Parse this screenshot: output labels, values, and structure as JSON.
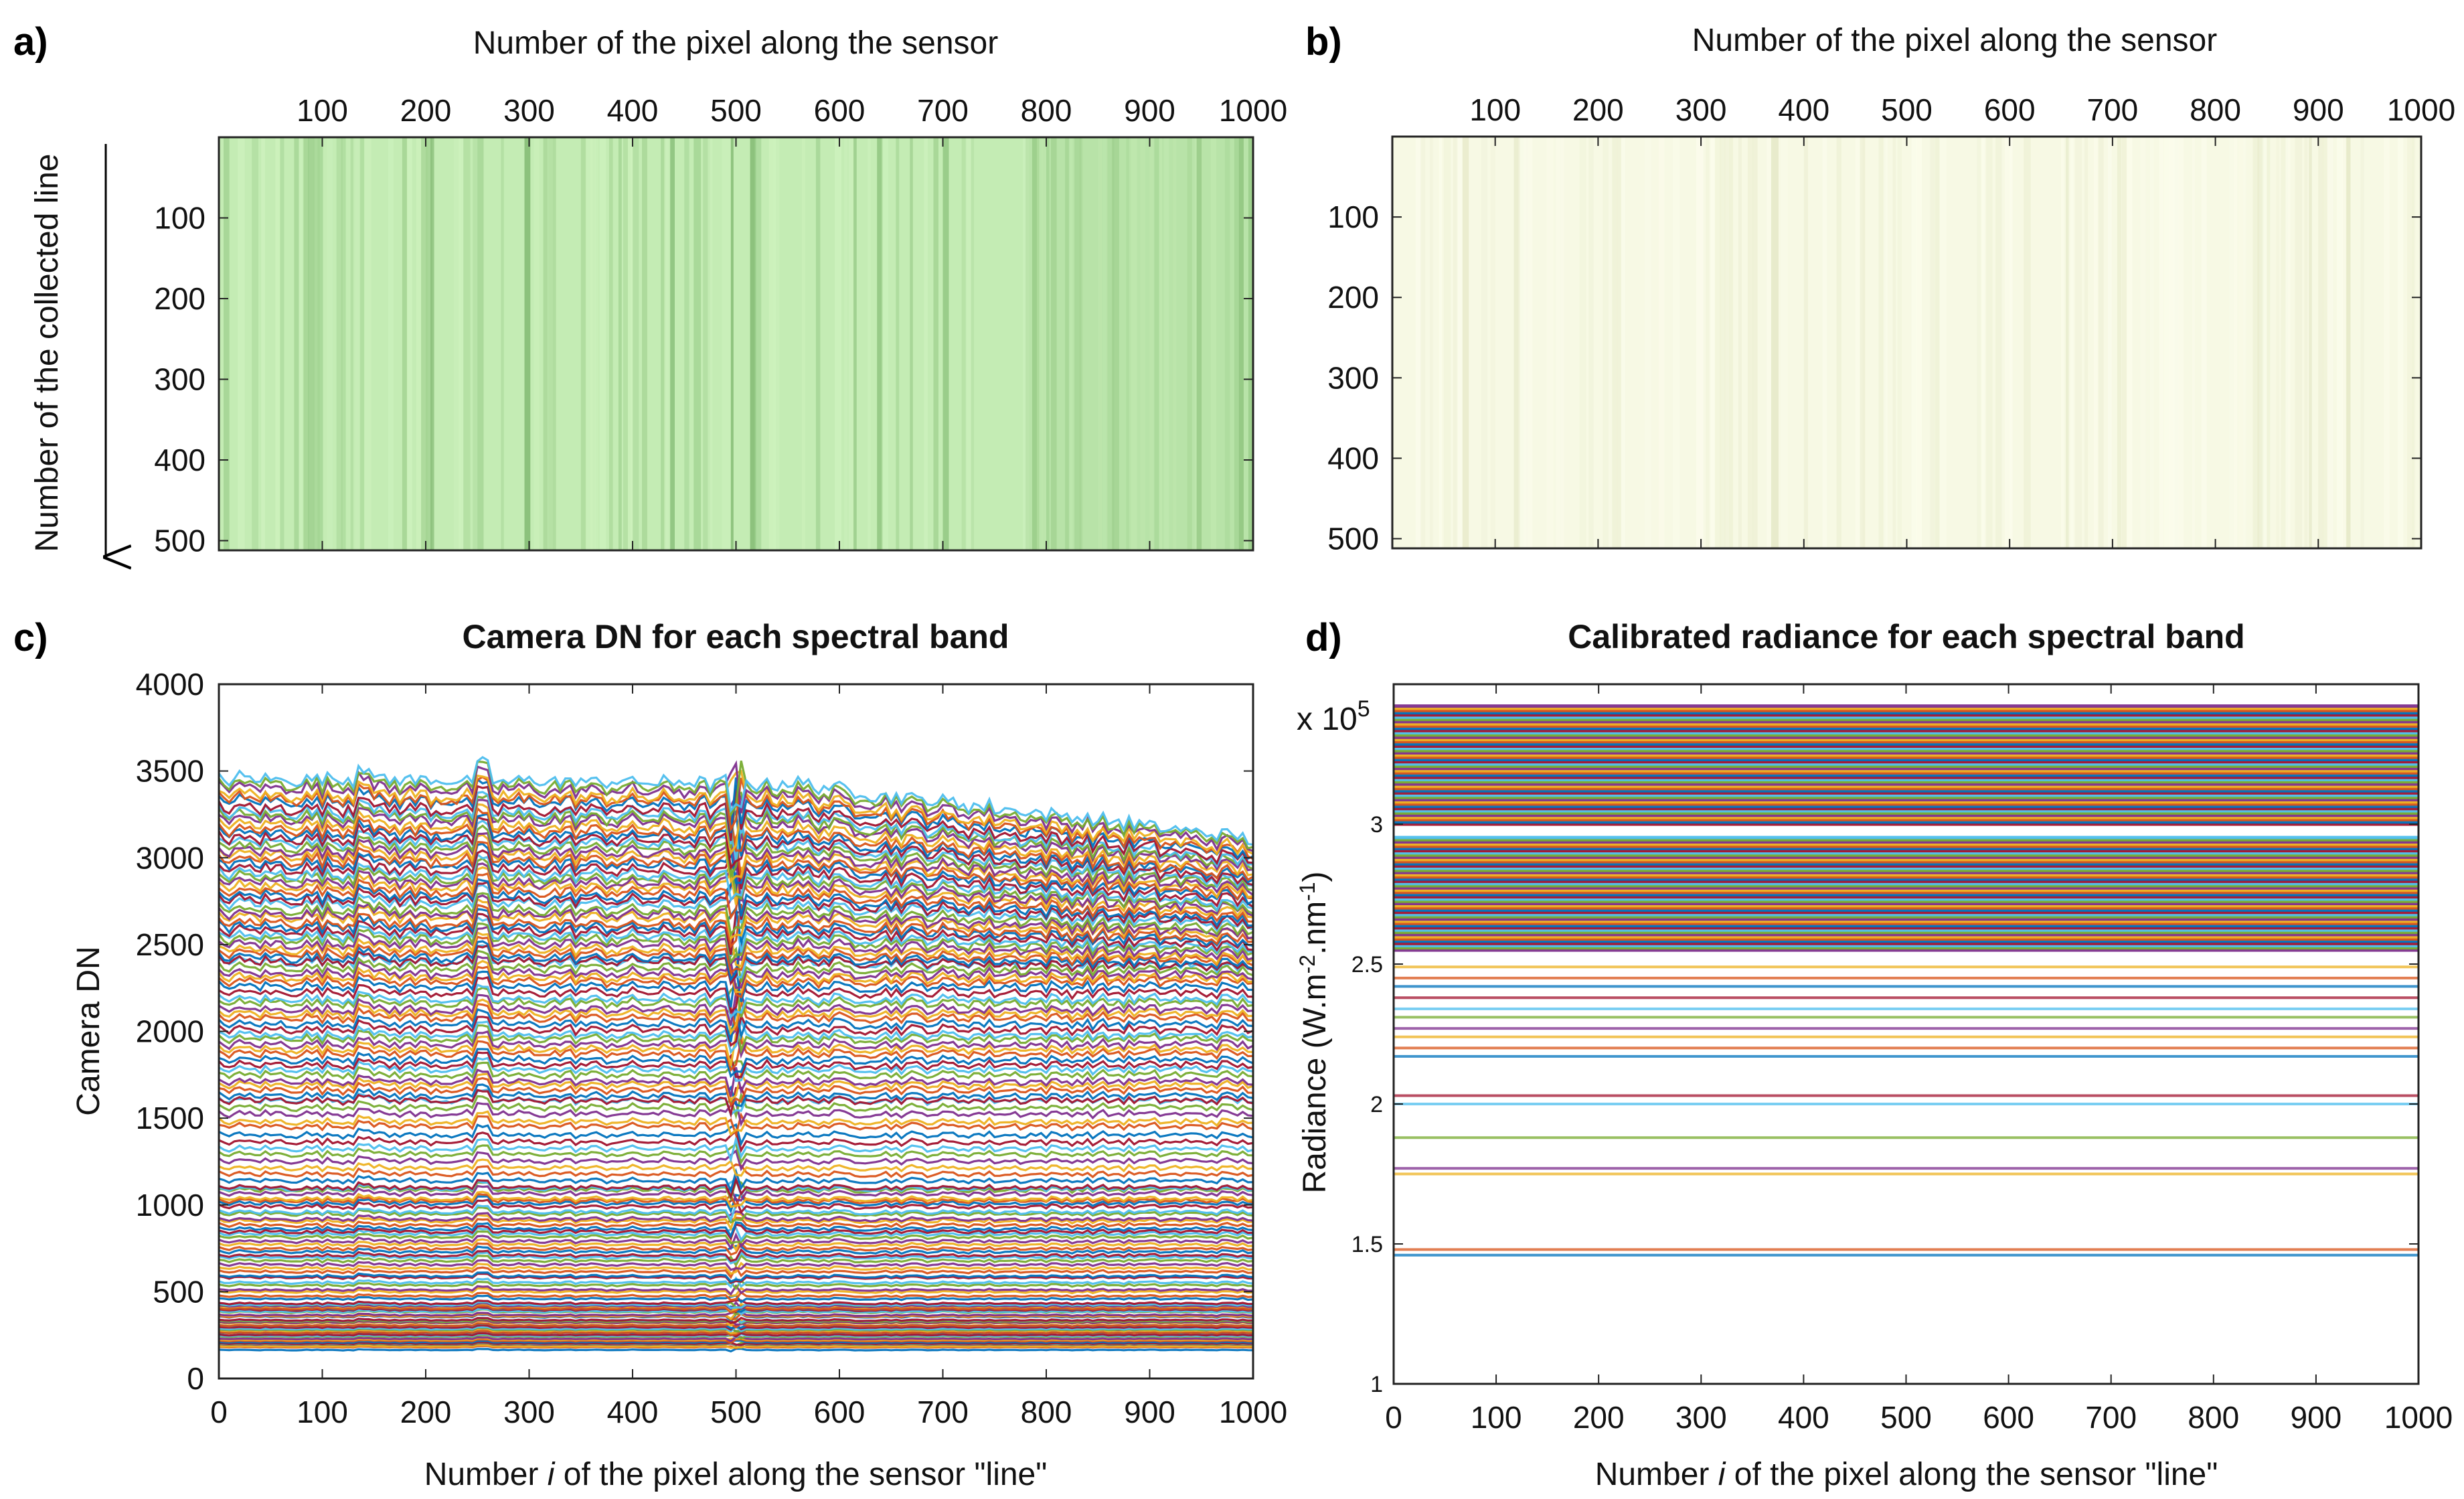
{
  "panels": {
    "a": {
      "label": "a)"
    },
    "b": {
      "label": "b)"
    },
    "c": {
      "label": "c)"
    },
    "d": {
      "label": "d)"
    }
  },
  "chart_data": [
    {
      "id": "a",
      "type": "heatmap",
      "title": "",
      "top_xlabel": "Number of the pixel along the sensor",
      "ylabel": "Number of the collected line",
      "xlim": [
        0,
        1000
      ],
      "ylim": [
        0,
        512
      ],
      "xticks": [
        100,
        200,
        300,
        400,
        500,
        600,
        700,
        800,
        900,
        1000
      ],
      "yticks": [
        100,
        200,
        300,
        400,
        500
      ],
      "colors": {
        "base": "#c4ecb4",
        "light": "#cef2be",
        "dark": "#a3d493",
        "stripe": "#7fb86f"
      },
      "note": "RGB composite of raw camera DN (green image with vertical striping)"
    },
    {
      "id": "b",
      "type": "heatmap",
      "title": "",
      "top_xlabel": "Number of the pixel along the sensor",
      "ylabel": "",
      "xlim": [
        0,
        1000
      ],
      "ylim": [
        0,
        512
      ],
      "xticks": [
        100,
        200,
        300,
        400,
        500,
        600,
        700,
        800,
        900,
        1000
      ],
      "yticks": [
        100,
        200,
        300,
        400,
        500
      ],
      "colors": {
        "base": "#f7f9e4",
        "light": "#fbfcec",
        "dark": "#eef1d6",
        "stripe": "#e4e8c6"
      },
      "note": "RGB composite of calibrated radiance (uniform pale image)"
    },
    {
      "id": "c",
      "type": "line",
      "title": "Camera DN for each spectral band",
      "xlabel": "Number i of the pixel along the sensor \"line\"",
      "xlabel_parts": [
        "Number ",
        "i",
        " of the pixel along the sensor \"line\""
      ],
      "ylabel": "Camera DN",
      "xlim": [
        0,
        1000
      ],
      "ylim": [
        0,
        4000
      ],
      "xticks": [
        0,
        100,
        200,
        300,
        400,
        500,
        600,
        700,
        800,
        900,
        1000
      ],
      "yticks": [
        0,
        500,
        1000,
        1500,
        2000,
        2500,
        3000,
        3500,
        4000
      ],
      "series_count": 160,
      "band_levels_range": [
        170,
        3450
      ],
      "band_level_clusters": [
        {
          "range": [
            170,
            420
          ],
          "count": 40
        },
        {
          "range": [
            420,
            1100
          ],
          "count": 36
        },
        {
          "range": [
            1100,
            1600
          ],
          "count": 14
        },
        {
          "range": [
            1600,
            2400
          ],
          "count": 28
        },
        {
          "range": [
            2400,
            3450
          ],
          "count": 42
        }
      ],
      "trend": "roughly flat; upper bands decline from ~3450 at pixel 0 to ~3150 at pixel 1000; spikes near pixels 140, 255, 500",
      "line_colors": [
        "#0072bd",
        "#d95319",
        "#edb120",
        "#7e2f8e",
        "#77ac30",
        "#4dbeee",
        "#a2142f"
      ]
    },
    {
      "id": "d",
      "type": "line",
      "title": "Calibrated radiance for each spectral band",
      "xlabel": "Number i of the pixel along the sensor \"line\"",
      "xlabel_parts": [
        "Number ",
        "i",
        " of the pixel along the sensor \"line\""
      ],
      "ylabel_parts": [
        "Radiance (W.m",
        "-2",
        ".nm",
        "-1",
        ")"
      ],
      "ylabel": "Radiance (W.m-2.nm-1)",
      "y_multiplier": "x 10",
      "y_multiplier_exp": "5",
      "xlim": [
        0,
        1000
      ],
      "ylim": [
        1,
        3.5
      ],
      "xticks": [
        0,
        100,
        200,
        300,
        400,
        500,
        600,
        700,
        800,
        900,
        1000
      ],
      "yticks": [
        1,
        1.5,
        2,
        2.5,
        3
      ],
      "ytick_labels": [
        "1",
        "1.5",
        "2",
        "2.5",
        "3"
      ],
      "series_count": 120,
      "selected_levels": [
        1.46,
        1.48,
        1.75,
        1.77,
        1.88,
        2.0,
        2.03,
        2.17,
        2.2,
        2.24,
        2.27,
        2.31,
        2.34,
        2.38,
        2.42,
        2.45,
        2.49
      ],
      "dense_level_ranges": [
        [
          2.55,
          2.78
        ],
        [
          2.78,
          2.96
        ],
        [
          3.0,
          3.43
        ]
      ],
      "trend": "all bands constant across pixels (horizontal lines)",
      "line_colors": [
        "#0072bd",
        "#d95319",
        "#edb120",
        "#7e2f8e",
        "#77ac30",
        "#4dbeee",
        "#a2142f"
      ]
    }
  ]
}
